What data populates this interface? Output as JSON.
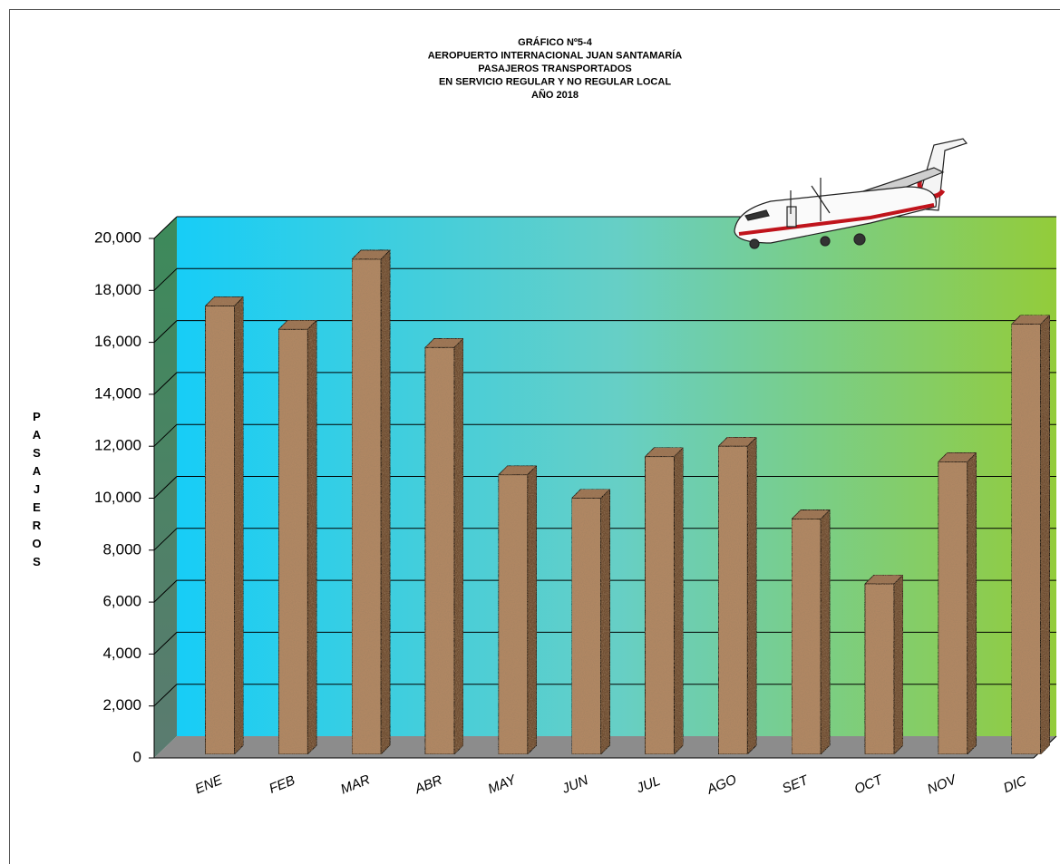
{
  "chart_data": {
    "type": "bar3d",
    "title": [
      "GRÁFICO Nº5-4",
      "AEROPUERTO INTERNACIONAL JUAN SANTAMARÍA",
      "PASAJEROS TRANSPORTADOS",
      "EN SERVICIO REGULAR Y NO REGULAR LOCAL",
      "AÑO 2018"
    ],
    "y_label": "PASAJEROS",
    "categories": [
      "ENE",
      "FEB",
      "MAR",
      "ABR",
      "MAY",
      "JUN",
      "JUL",
      "AGO",
      "SET",
      "OCT",
      "NOV",
      "DIC"
    ],
    "values": [
      17400,
      16500,
      19200,
      15800,
      10900,
      10000,
      11600,
      12000,
      9200,
      6700,
      11400,
      16700
    ],
    "color": "#b08763",
    "ylim": [
      0,
      20000
    ],
    "yticks": [
      0,
      {
        "value": 2000,
        "label": "2,000"
      },
      {
        "value": 4000,
        "label": "4,000"
      },
      {
        "value": 6000,
        "label": "6,000"
      },
      {
        "value": 8000,
        "label": "8,000"
      },
      {
        "value": 10000,
        "label": "10,000"
      },
      {
        "value": 12000,
        "label": "12,000"
      },
      {
        "value": 14000,
        "label": "14,000"
      },
      {
        "value": 16000,
        "label": "16,000"
      },
      {
        "value": 18000,
        "label": "18,000"
      },
      {
        "value": 20000,
        "label": "20,000"
      }
    ],
    "grid": true
  }
}
